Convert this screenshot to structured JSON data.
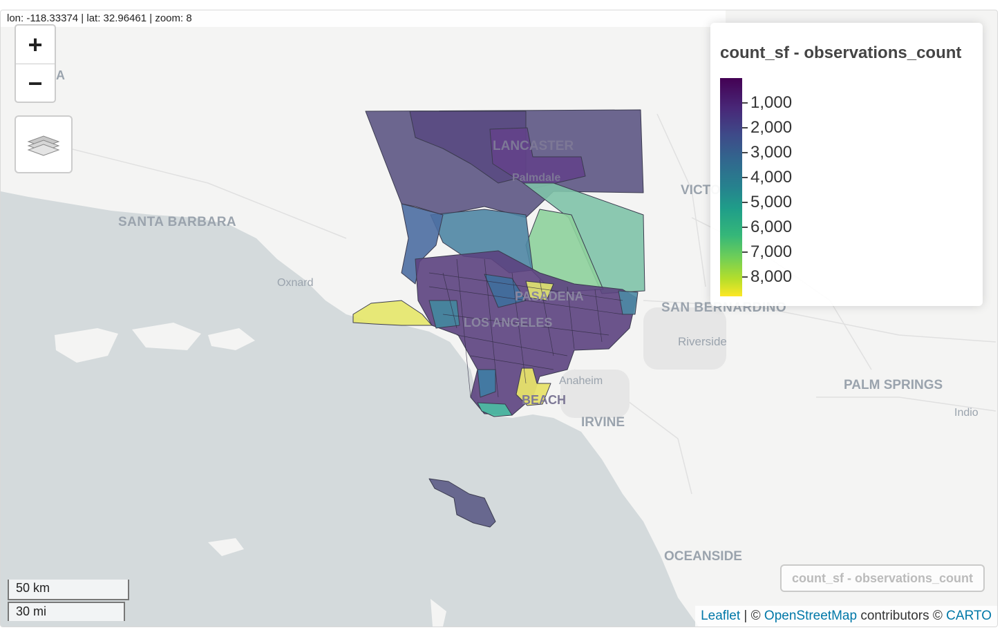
{
  "status": {
    "coords": "lon: -118.33374 | lat: 32.96461 | zoom: 8"
  },
  "controls": {
    "zoom_in": "+",
    "zoom_out": "−",
    "layers_icon": "layers-icon"
  },
  "legend": {
    "title": "count_sf - observations_count",
    "labels": [
      "1,000",
      "2,000",
      "3,000",
      "4,000",
      "5,000",
      "6,000",
      "7,000",
      "8,000"
    ],
    "palette": [
      "#440154",
      "#3e4a89",
      "#26828e",
      "#35b779",
      "#fde725"
    ]
  },
  "places": {
    "santa_barbara": "SANTA BARBARA",
    "oxnard": "Oxnard",
    "lancaster": "LANCASTER",
    "palmdale": "Palmdale",
    "victorville": "VICTO",
    "san_bernardino": "SAN BERNARDINO",
    "riverside": "Riverside",
    "pasadena": "PASADENA",
    "los_angeles": "LOS ANGELES",
    "anaheim": "Anaheim",
    "long_beach": "BEACH",
    "irvine": "IRVINE",
    "palm_springs": "PALM SPRINGS",
    "indio": "Indio",
    "oceanside": "OCEANSIDE",
    "ventura": "A"
  },
  "scale": {
    "km": "50 km",
    "mi": "30 mi"
  },
  "layer_toggle": "count_sf - observations_count",
  "attribution": {
    "leaflet": "Leaflet",
    "sep1": " | © ",
    "osm": "OpenStreetMap",
    "contrib": " contributors © ",
    "carto": "CARTO"
  }
}
